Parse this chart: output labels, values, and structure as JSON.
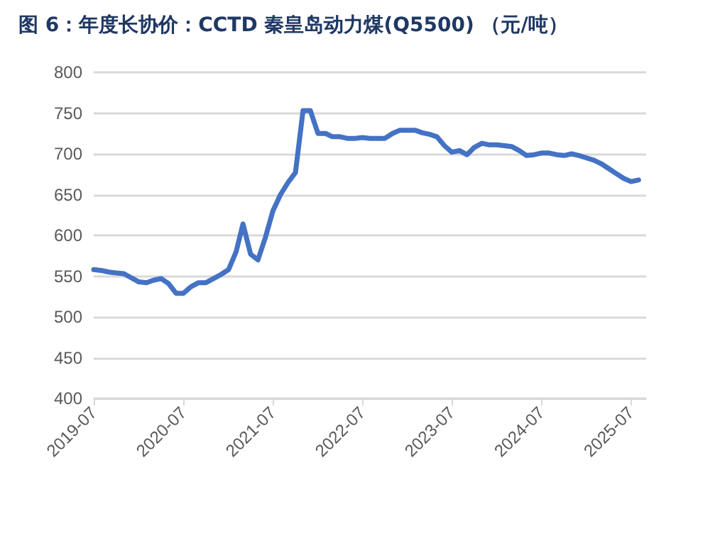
{
  "chart_data": {
    "type": "line",
    "title": "图 6：年度长协价：CCTD 秦皇岛动力煤(Q5500) （元/吨）",
    "x": [
      "2019-07",
      "2019-08",
      "2019-09",
      "2019-10",
      "2019-11",
      "2019-12",
      "2020-01",
      "2020-02",
      "2020-03",
      "2020-04",
      "2020-05",
      "2020-06",
      "2020-07",
      "2020-08",
      "2020-09",
      "2020-10",
      "2020-11",
      "2020-12",
      "2021-01",
      "2021-02",
      "2021-03",
      "2021-04",
      "2021-05",
      "2021-06",
      "2021-07",
      "2021-08",
      "2021-09",
      "2021-10",
      "2021-11",
      "2021-12",
      "2022-01",
      "2022-02",
      "2022-03",
      "2022-04",
      "2022-05",
      "2022-06",
      "2022-07",
      "2022-08",
      "2022-09",
      "2022-10",
      "2022-11",
      "2022-12",
      "2023-01",
      "2023-02",
      "2023-03",
      "2023-04",
      "2023-05",
      "2023-06",
      "2023-07",
      "2023-08",
      "2023-09",
      "2023-10",
      "2023-11",
      "2023-12",
      "2024-01",
      "2024-02",
      "2024-03",
      "2024-04",
      "2024-05",
      "2024-06",
      "2024-07",
      "2024-08",
      "2024-09",
      "2024-10",
      "2024-11",
      "2024-12",
      "2025-01",
      "2025-02",
      "2025-03",
      "2025-04",
      "2025-05",
      "2025-06",
      "2025-07",
      "2025-08"
    ],
    "series": [
      {
        "color": "#4472c4",
        "values": [
          558,
          557,
          555,
          554,
          553,
          548,
          543,
          542,
          545,
          547,
          541,
          529,
          529,
          537,
          542,
          542,
          547,
          552,
          558,
          580,
          614,
          577,
          570,
          598,
          630,
          650,
          665,
          677,
          753,
          753,
          725,
          725,
          721,
          721,
          719,
          719,
          720,
          719,
          719,
          719,
          725,
          729,
          729,
          729,
          726,
          724,
          721,
          710,
          702,
          704,
          699,
          708,
          713,
          711,
          711,
          710,
          709,
          704,
          698,
          699,
          701,
          701,
          699,
          698,
          700,
          698,
          695,
          692,
          688,
          682,
          676,
          670,
          666,
          668
        ]
      }
    ],
    "xlim": [
      "2019-07",
      "2025-09"
    ],
    "xticks": [
      "2019-07",
      "2020-07",
      "2021-07",
      "2022-07",
      "2023-07",
      "2024-07",
      "2025-07"
    ],
    "ylim": [
      400,
      800
    ],
    "yticks": [
      400,
      450,
      500,
      550,
      600,
      650,
      700,
      750,
      800
    ],
    "grid": "y",
    "marker": "none",
    "line_style": "solid"
  }
}
